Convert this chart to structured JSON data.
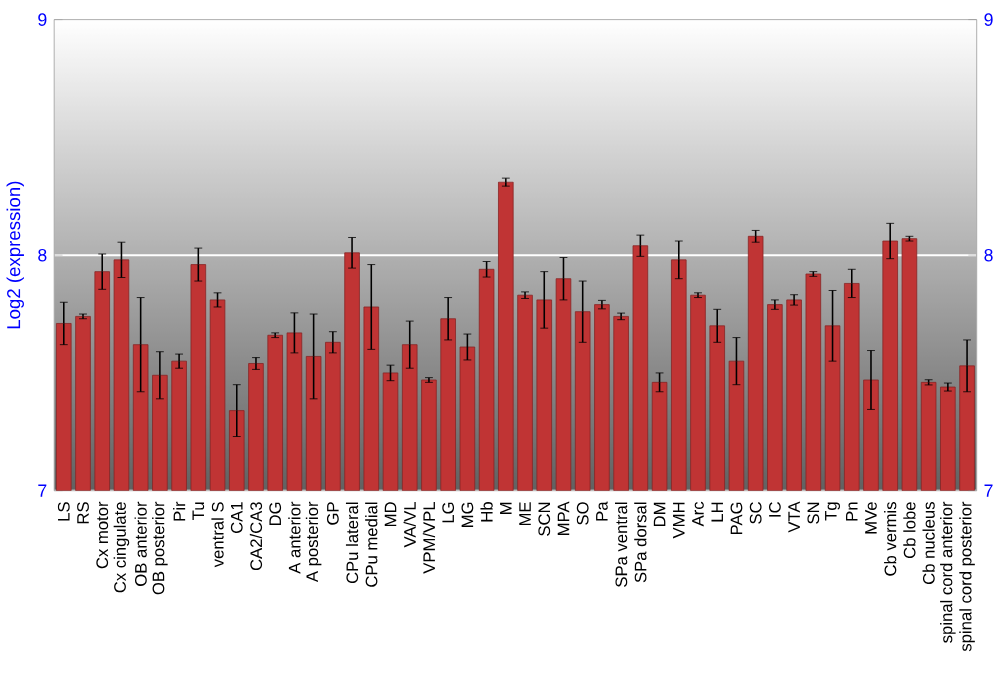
{
  "chart_data": {
    "type": "bar",
    "ylabel": "Log2 (expression)",
    "categories": [
      "LS",
      "RS",
      "Cx motor",
      "Cx cingulate",
      "OB anterior",
      "OB posterior",
      "Pir",
      "Tu",
      "ventral S",
      "CA1",
      "CA2/CA3",
      "DG",
      "A anterior",
      "A posterior",
      "GP",
      "CPu lateral",
      "CPu medial",
      "MD",
      "VA/VL",
      "VPM/VPL",
      "LG",
      "MG",
      "Hb",
      "M",
      "ME",
      "SCN",
      "MPA",
      "SO",
      "Pa",
      "SPa ventral",
      "SPa dorsal",
      "DM",
      "VMH",
      "Arc",
      "LH",
      "PAG",
      "SC",
      "IC",
      "VTA",
      "SN",
      "Tg",
      "Pn",
      "MVe",
      "Cb vermis",
      "Cb lobe",
      "Cb nucleus",
      "spinal cord anterior",
      "spinal cord posterior"
    ],
    "values": [
      7.71,
      7.74,
      7.93,
      7.98,
      7.62,
      7.49,
      7.55,
      7.96,
      7.81,
      7.34,
      7.54,
      7.66,
      7.67,
      7.57,
      7.63,
      8.01,
      7.78,
      7.5,
      7.62,
      7.47,
      7.73,
      7.61,
      7.94,
      8.31,
      7.83,
      7.81,
      7.9,
      7.76,
      7.79,
      7.74,
      8.04,
      7.46,
      7.98,
      7.83,
      7.7,
      7.55,
      8.08,
      7.79,
      7.81,
      7.92,
      7.7,
      7.88,
      7.47,
      8.06,
      8.07,
      7.46,
      7.44,
      7.53
    ],
    "errors": [
      0.09,
      0.01,
      0.075,
      0.075,
      0.2,
      0.1,
      0.03,
      0.07,
      0.03,
      0.11,
      0.025,
      0.01,
      0.085,
      0.18,
      0.045,
      0.065,
      0.18,
      0.033,
      0.1,
      0.01,
      0.09,
      0.055,
      0.033,
      0.017,
      0.014,
      0.12,
      0.09,
      0.13,
      0.018,
      0.014,
      0.045,
      0.04,
      0.08,
      0.01,
      0.07,
      0.1,
      0.025,
      0.02,
      0.022,
      0.01,
      0.15,
      0.06,
      0.125,
      0.075,
      0.01,
      0.011,
      0.017,
      0.11
    ],
    "color": "#c03434",
    "ylim": [
      7,
      9
    ],
    "yticks": [
      7,
      8,
      9
    ],
    "y2lim": [
      7,
      9
    ],
    "y2ticks": [
      7,
      8,
      9
    ],
    "grid": "y"
  }
}
